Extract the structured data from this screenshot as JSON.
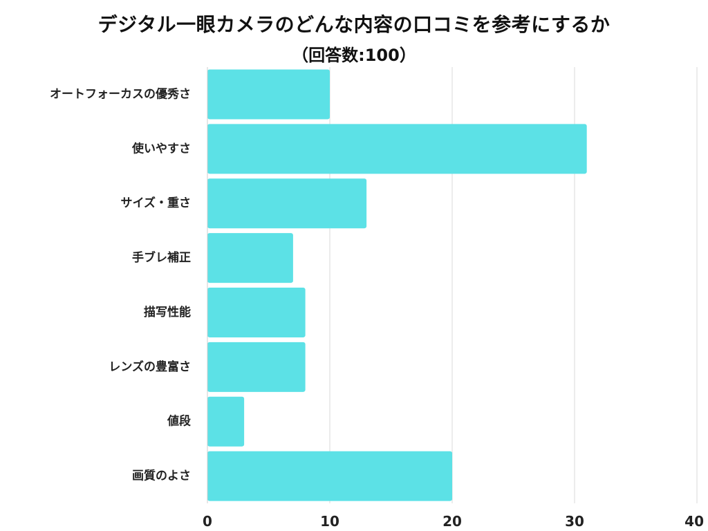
{
  "chart_data": {
    "type": "bar",
    "orientation": "horizontal",
    "title": "デジタル一眼カメラのどんな内容の口コミを参考にするか",
    "subtitle": "（回答数:100）",
    "xlabel": "",
    "ylabel": "",
    "categories": [
      "オートフォーカスの優秀さ",
      "使いやすさ",
      "サイズ・重さ",
      "手ブレ補正",
      "描写性能",
      "レンズの豊富さ",
      "値段",
      "画質のよさ"
    ],
    "values": [
      10,
      31,
      13,
      7,
      8,
      8,
      3,
      20
    ],
    "xlim": [
      0,
      40
    ],
    "xticks": [
      "0",
      "10",
      "20",
      "30",
      "40"
    ],
    "grid": true,
    "legend": "none",
    "bar_color": "#5ce1e6",
    "grid_color": "#d9d9d9",
    "axis_color": "#cccccc"
  }
}
